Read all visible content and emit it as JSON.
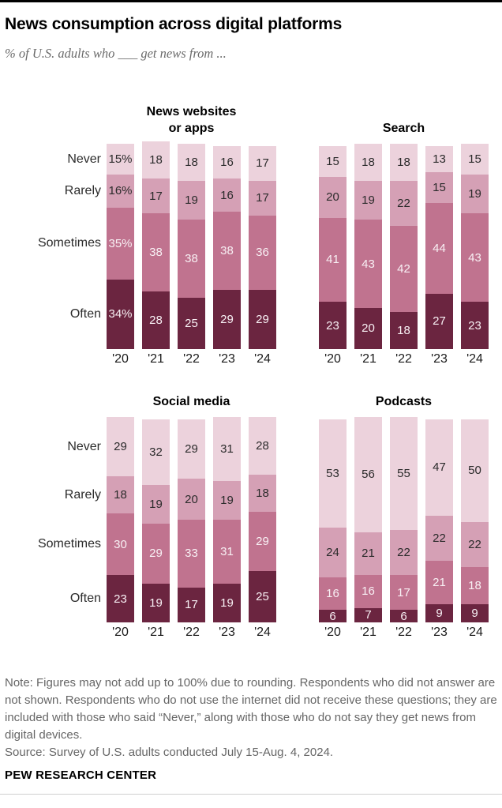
{
  "header": {
    "title": "News consumption across digital platforms",
    "subtitle": "% of U.S. adults who ___ get news from ..."
  },
  "palette": {
    "Never": "#ecd2dc",
    "Rarely": "#d5a0b5",
    "Sometimes": "#c0738f",
    "Often": "#6b2540",
    "label_dark": "#2b2b2b",
    "label_light": "#f8f0f4"
  },
  "chart_data": [
    {
      "type": "bar",
      "stacked": true,
      "title": "News websites\nor apps",
      "categories": [
        "'20",
        "'21",
        "'22",
        "'23",
        "'24"
      ],
      "show_row_labels": true,
      "series": [
        {
          "name": "Never",
          "label_style": "dark",
          "values": [
            15,
            18,
            18,
            16,
            17
          ],
          "labels": [
            "15%",
            "18",
            "18",
            "16",
            "17"
          ]
        },
        {
          "name": "Rarely",
          "label_style": "dark",
          "values": [
            16,
            17,
            19,
            16,
            17
          ],
          "labels": [
            "16%",
            "17",
            "19",
            "16",
            "17"
          ]
        },
        {
          "name": "Sometimes",
          "label_style": "light",
          "values": [
            35,
            38,
            38,
            38,
            36
          ],
          "labels": [
            "35%",
            "38",
            "38",
            "38",
            "36"
          ]
        },
        {
          "name": "Often",
          "label_style": "light",
          "values": [
            34,
            28,
            25,
            29,
            29
          ],
          "labels": [
            "34%",
            "28",
            "25",
            "29",
            "29"
          ]
        }
      ]
    },
    {
      "type": "bar",
      "stacked": true,
      "title": "Search",
      "categories": [
        "'20",
        "'21",
        "'22",
        "'23",
        "'24"
      ],
      "show_row_labels": false,
      "series": [
        {
          "name": "Never",
          "label_style": "dark",
          "values": [
            15,
            18,
            18,
            13,
            15
          ],
          "labels": [
            "15",
            "18",
            "18",
            "13",
            "15"
          ]
        },
        {
          "name": "Rarely",
          "label_style": "dark",
          "values": [
            20,
            19,
            22,
            15,
            19
          ],
          "labels": [
            "20",
            "19",
            "22",
            "15",
            "19"
          ]
        },
        {
          "name": "Sometimes",
          "label_style": "light",
          "values": [
            41,
            43,
            42,
            44,
            43
          ],
          "labels": [
            "41",
            "43",
            "42",
            "44",
            "43"
          ]
        },
        {
          "name": "Often",
          "label_style": "light",
          "values": [
            23,
            20,
            18,
            27,
            23
          ],
          "labels": [
            "23",
            "20",
            "18",
            "27",
            "23"
          ]
        }
      ]
    },
    {
      "type": "bar",
      "stacked": true,
      "title": "Social media",
      "categories": [
        "'20",
        "'21",
        "'22",
        "'23",
        "'24"
      ],
      "show_row_labels": true,
      "series": [
        {
          "name": "Never",
          "label_style": "dark",
          "values": [
            29,
            32,
            29,
            31,
            28
          ],
          "labels": [
            "29",
            "32",
            "29",
            "31",
            "28"
          ]
        },
        {
          "name": "Rarely",
          "label_style": "dark",
          "values": [
            18,
            19,
            20,
            19,
            18
          ],
          "labels": [
            "18",
            "19",
            "20",
            "19",
            "18"
          ]
        },
        {
          "name": "Sometimes",
          "label_style": "light",
          "values": [
            30,
            29,
            33,
            31,
            29
          ],
          "labels": [
            "30",
            "29",
            "33",
            "31",
            "29"
          ]
        },
        {
          "name": "Often",
          "label_style": "light",
          "values": [
            23,
            19,
            17,
            19,
            25
          ],
          "labels": [
            "23",
            "19",
            "17",
            "19",
            "25"
          ]
        }
      ]
    },
    {
      "type": "bar",
      "stacked": true,
      "title": "Podcasts",
      "categories": [
        "'20",
        "'21",
        "'22",
        "'23",
        "'24"
      ],
      "show_row_labels": false,
      "series": [
        {
          "name": "Never",
          "label_style": "dark",
          "values": [
            53,
            56,
            55,
            47,
            50
          ],
          "labels": [
            "53",
            "56",
            "55",
            "47",
            "50"
          ]
        },
        {
          "name": "Rarely",
          "label_style": "dark",
          "values": [
            24,
            21,
            22,
            22,
            22
          ],
          "labels": [
            "24",
            "21",
            "22",
            "22",
            "22"
          ]
        },
        {
          "name": "Sometimes",
          "label_style": "light",
          "values": [
            16,
            16,
            17,
            21,
            18
          ],
          "labels": [
            "16",
            "16",
            "17",
            "21",
            "18"
          ]
        },
        {
          "name": "Often",
          "label_style": "light",
          "values": [
            6,
            7,
            6,
            9,
            9
          ],
          "labels": [
            "6",
            "7",
            "6",
            "9",
            "9"
          ]
        }
      ]
    }
  ],
  "footer": {
    "note": "Note: Figures may not add up to 100% due to rounding. Respondents who did not answer are not shown. Respondents who do not use the internet did not receive these questions; they are included with those who said “Never,” along with those who do not say they get news from digital devices.",
    "source": "Source: Survey of U.S. adults conducted July 15-Aug. 4, 2024.",
    "brand": "PEW RESEARCH CENTER"
  }
}
